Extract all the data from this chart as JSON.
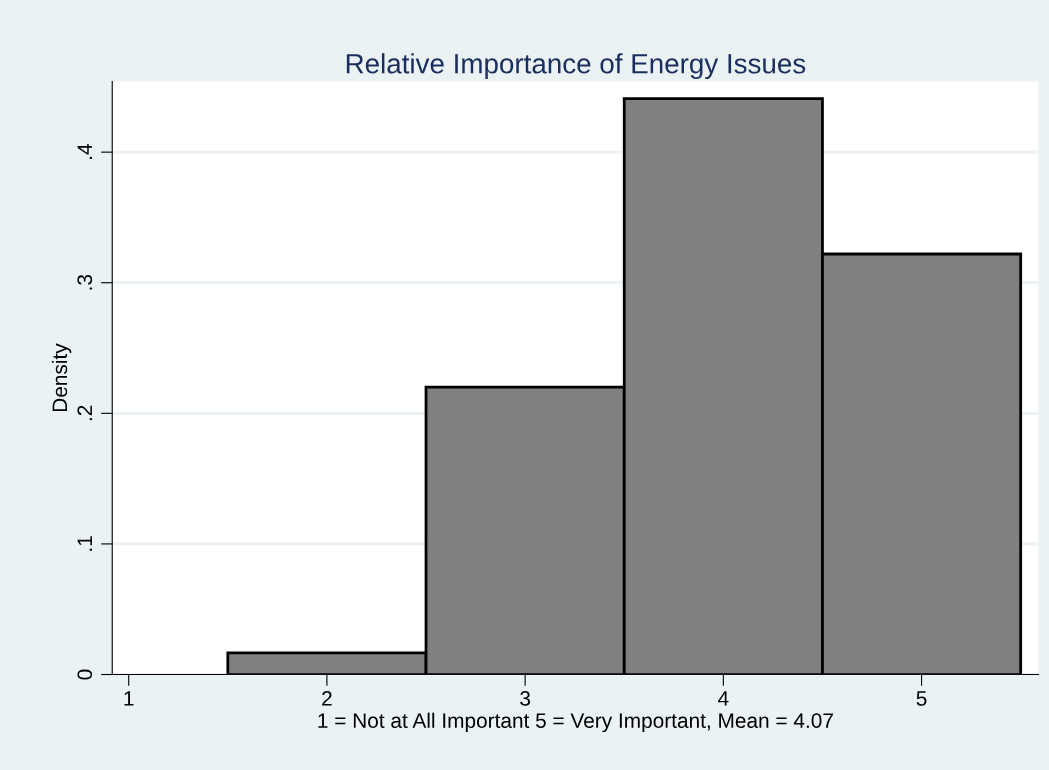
{
  "chart_data": {
    "type": "histogram",
    "title": "Relative Importance of Energy Issues",
    "xlabel": "1 = Not at All Important 5 = Very Important, Mean = 4.07",
    "ylabel": "Density",
    "bins": [
      1.5,
      2.5,
      3.5,
      4.5,
      5.5
    ],
    "values": [
      0.0166,
      0.22,
      0.441,
      0.322
    ],
    "color": "#808080",
    "xlim": [
      0.917,
      5.59
    ],
    "ylim": [
      0,
      0.454
    ],
    "xticks": [
      1,
      2,
      3,
      4,
      5
    ],
    "yticks": [
      {
        "value": 0,
        "label": "0"
      },
      {
        "value": 0.1,
        "label": ".1"
      },
      {
        "value": 0.2,
        "label": ".2"
      },
      {
        "value": 0.3,
        "label": ".3"
      },
      {
        "value": 0.4,
        "label": ".4"
      }
    ],
    "grid": "y",
    "legend": false
  }
}
